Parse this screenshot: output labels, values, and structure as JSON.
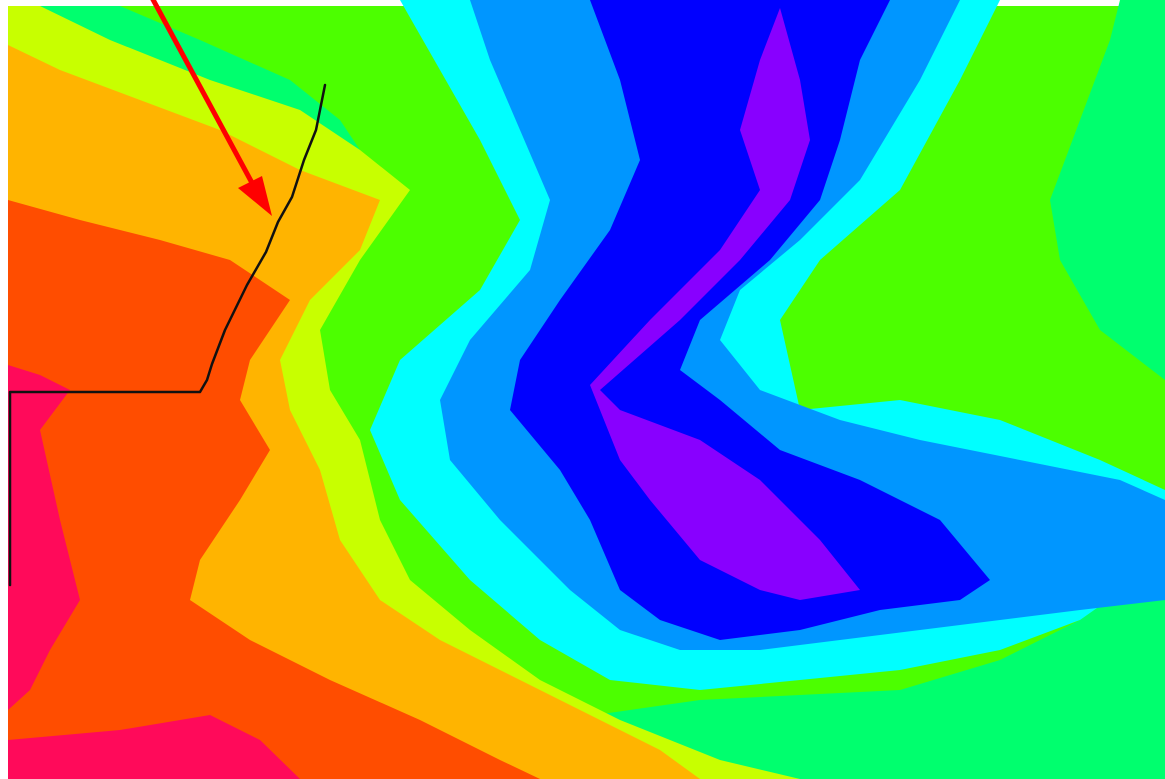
{
  "map": {
    "type": "filled-contour-map",
    "title": "",
    "legend": "none",
    "axes": "none",
    "background_color": "#ffffff",
    "color_bands": [
      {
        "level": 0,
        "name": "crimson",
        "color": "#ff0a5a"
      },
      {
        "level": 1,
        "name": "red-orange",
        "color": "#ff4d00"
      },
      {
        "level": 2,
        "name": "orange",
        "color": "#ffb400"
      },
      {
        "level": 3,
        "name": "yellow-green",
        "color": "#c8ff00"
      },
      {
        "level": 4,
        "name": "green",
        "color": "#4cff00"
      },
      {
        "level": 5,
        "name": "spring-green",
        "color": "#00ff6e"
      },
      {
        "level": 6,
        "name": "cyan",
        "color": "#00ffff"
      },
      {
        "level": 7,
        "name": "azure",
        "color": "#0096ff"
      },
      {
        "level": 8,
        "name": "blue",
        "color": "#0000ff"
      },
      {
        "level": 9,
        "name": "violet",
        "color": "#8800ff"
      }
    ],
    "trace_line": {
      "color": "#111111"
    },
    "annotation_arrow": {
      "color": "#ff0000"
    }
  }
}
